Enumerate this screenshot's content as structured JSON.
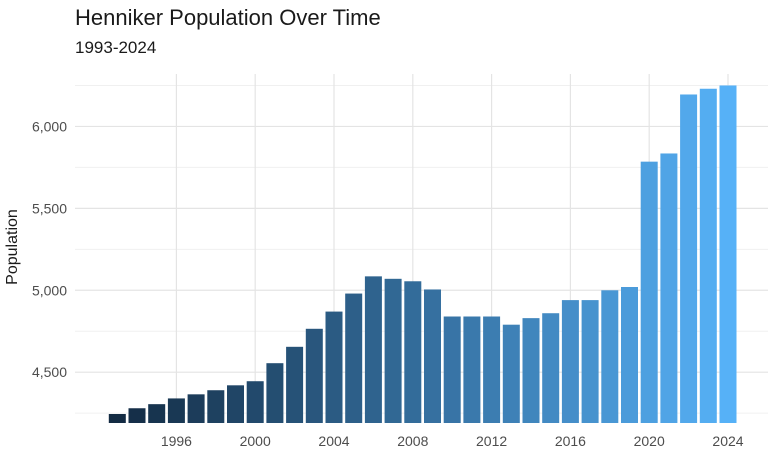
{
  "chart_data": {
    "type": "bar",
    "title": "Henniker Population Over Time",
    "subtitle": "1993-2024",
    "xlabel": "",
    "ylabel": "Population",
    "x": [
      1993,
      1994,
      1995,
      1996,
      1997,
      1998,
      1999,
      2000,
      2001,
      2002,
      2003,
      2004,
      2005,
      2006,
      2007,
      2008,
      2009,
      2010,
      2011,
      2012,
      2013,
      2014,
      2015,
      2016,
      2017,
      2018,
      2019,
      2020,
      2021,
      2022,
      2023,
      2024
    ],
    "values": [
      4245,
      4280,
      4305,
      4340,
      4365,
      4390,
      4420,
      4445,
      4555,
      4655,
      4765,
      4870,
      4980,
      5085,
      5070,
      5055,
      5005,
      4840,
      4840,
      4840,
      4790,
      4830,
      4860,
      4940,
      4940,
      5000,
      5020,
      5785,
      5835,
      6195,
      6230,
      6250
    ],
    "x_ticks": [
      "1996",
      "2000",
      "2004",
      "2008",
      "2012",
      "2016",
      "2020",
      "2024"
    ],
    "y_ticks": [
      "4,500",
      "5,000",
      "5,500",
      "6,000"
    ],
    "ylim": [
      4190,
      6320
    ],
    "grid": true,
    "legend": false,
    "color_scale": {
      "low": "#132b43",
      "high": "#56b1f7"
    }
  }
}
